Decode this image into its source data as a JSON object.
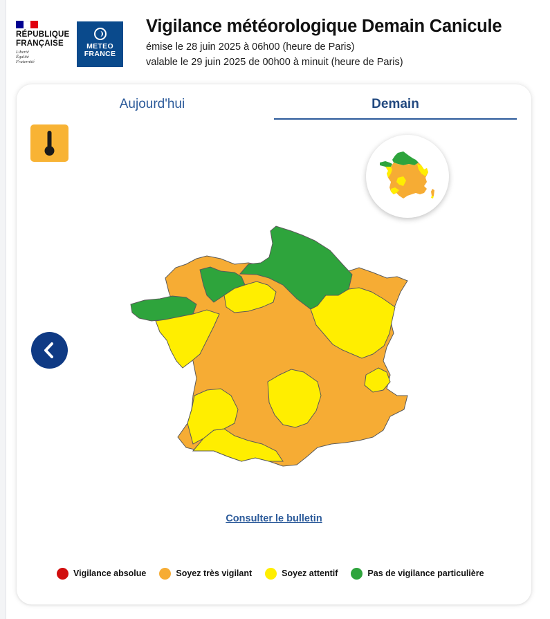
{
  "header": {
    "republic_logo": {
      "title_line1": "RÉPUBLIQUE",
      "title_line2": "FRANÇAISE",
      "motto": [
        "Liberté",
        "Égalité",
        "Fraternité"
      ],
      "flag_colors": [
        "#000091",
        "#ffffff",
        "#e1000f"
      ]
    },
    "meteo_logo": {
      "line1": "METEO",
      "line2": "FRANCE",
      "color": "#0a4a8c"
    },
    "title": "Vigilance météorologique Demain Canicule",
    "issued": "émise le 28 juin 2025 à 06h00 (heure de Paris)",
    "valid": "valable le 29 juin 2025 de 00h00 à minuit (heure de Paris)"
  },
  "tabs": [
    {
      "label": "Aujourd'hui",
      "selected": false
    },
    {
      "label": "Demain",
      "selected": true
    }
  ],
  "phenomenon": {
    "icon": "thermometer-icon",
    "color": "#f8b334"
  },
  "map": {
    "colors": {
      "green": "#2ea43c",
      "yellow": "#ffee00",
      "orange": "#f6ac34",
      "border": "#5a5a5a"
    }
  },
  "bulletin_link": "Consulter le bulletin",
  "legend": [
    {
      "label": "Vigilance absolue",
      "color": "#d10d0d"
    },
    {
      "label": "Soyez très vigilant",
      "color": "#f6ac34"
    },
    {
      "label": "Soyez attentif",
      "color": "#ffee00"
    },
    {
      "label": "Pas de vigilance particulière",
      "color": "#2ea43c"
    }
  ]
}
